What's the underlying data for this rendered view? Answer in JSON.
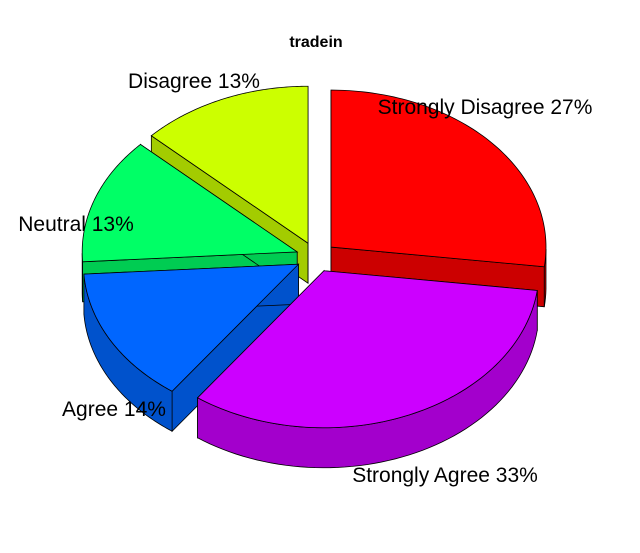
{
  "chart_data": {
    "type": "pie",
    "title": "tradein",
    "labels": [
      "Strongly Disagree 27%",
      "Strongly Agree 33%",
      "Agree 14%",
      "Neutral 13%",
      "Disagree 13%"
    ],
    "categories": [
      "Strongly Disagree",
      "Strongly Agree",
      "Agree",
      "Neutral",
      "Disagree"
    ],
    "values": [
      27,
      33,
      14,
      13,
      13
    ],
    "colors": [
      "#ff0000",
      "#cc00ff",
      "#0066ff",
      "#00ff66",
      "#ccff00"
    ],
    "style": "3d-exploded"
  }
}
